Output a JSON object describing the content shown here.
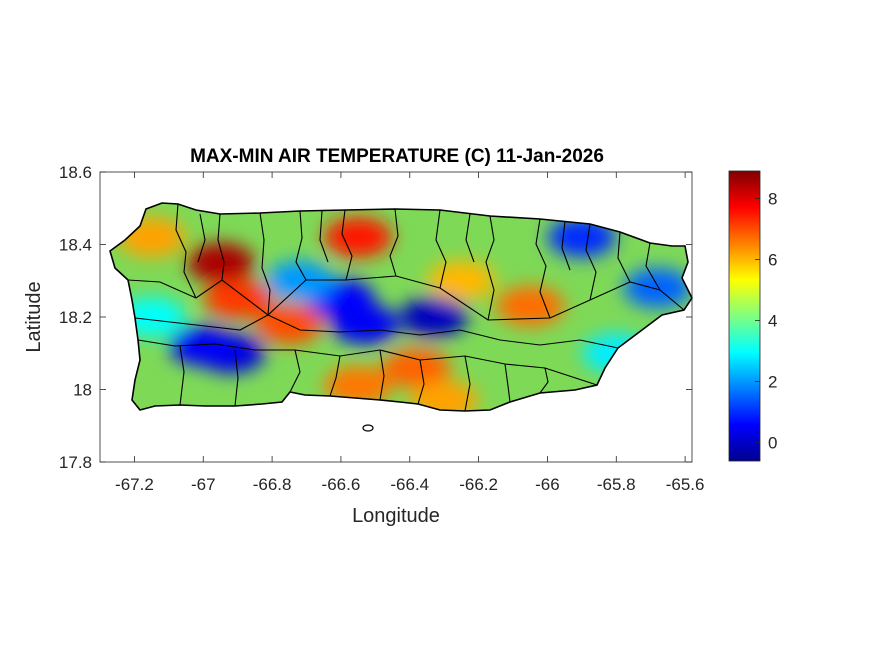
{
  "chart_data": {
    "type": "heatmap",
    "title": "MAX-MIN AIR TEMPERATURE (C) 11-Jan-2026",
    "xlabel": "Longitude",
    "ylabel": "Latitude",
    "xlim": [
      -67.3,
      -65.58
    ],
    "ylim": [
      17.8,
      18.6
    ],
    "x_ticks": [
      -67.2,
      -67,
      -66.8,
      -66.6,
      -66.4,
      -66.2,
      -66,
      -65.8,
      -65.6
    ],
    "x_tick_labels": [
      "-67.2",
      "-67",
      "-66.8",
      "-66.6",
      "-66.4",
      "-66.2",
      "-66",
      "-65.8",
      "-65.6"
    ],
    "y_ticks": [
      17.8,
      18,
      18.2,
      18.4,
      18.6
    ],
    "y_tick_labels": [
      "17.8",
      "18",
      "18.2",
      "18.4",
      "18.6"
    ],
    "colorbar": {
      "colormap": "jet",
      "range": [
        -0.6,
        8.9
      ],
      "ticks": [
        0,
        2,
        4,
        6,
        8
      ],
      "tick_labels": [
        "0",
        "2",
        "4",
        "6",
        "8"
      ]
    },
    "hotspots": [
      {
        "lon": -66.95,
        "lat": 18.35,
        "value": 8.5
      },
      {
        "lon": -66.9,
        "lat": 18.25,
        "value": 7.2
      },
      {
        "lon": -66.75,
        "lat": 18.18,
        "value": 7.0
      },
      {
        "lon": -66.55,
        "lat": 18.42,
        "value": 7.5
      },
      {
        "lon": -66.38,
        "lat": 18.06,
        "value": 6.8
      },
      {
        "lon": -66.55,
        "lat": 18.01,
        "value": 6.6
      },
      {
        "lon": -66.3,
        "lat": 17.97,
        "value": 6.2
      },
      {
        "lon": -66.05,
        "lat": 18.23,
        "value": 6.7
      },
      {
        "lon": -66.25,
        "lat": 18.3,
        "value": 6.0
      },
      {
        "lon": -67.15,
        "lat": 18.42,
        "value": 6.2
      }
    ],
    "coldspots": [
      {
        "lon": -66.6,
        "lat": 18.25,
        "value": 0.6
      },
      {
        "lon": -66.53,
        "lat": 18.18,
        "value": 0.5
      },
      {
        "lon": -66.33,
        "lat": 18.2,
        "value": 0.0
      },
      {
        "lon": -66.92,
        "lat": 18.1,
        "value": 0.3
      },
      {
        "lon": -67.0,
        "lat": 18.12,
        "value": 0.5
      },
      {
        "lon": -65.9,
        "lat": 18.42,
        "value": 1.0
      },
      {
        "lon": -65.68,
        "lat": 18.28,
        "value": 1.5
      },
      {
        "lon": -66.72,
        "lat": 18.3,
        "value": 2.0
      },
      {
        "lon": -65.8,
        "lat": 18.1,
        "value": 2.8
      },
      {
        "lon": -67.15,
        "lat": 18.2,
        "value": 3.0
      }
    ]
  }
}
